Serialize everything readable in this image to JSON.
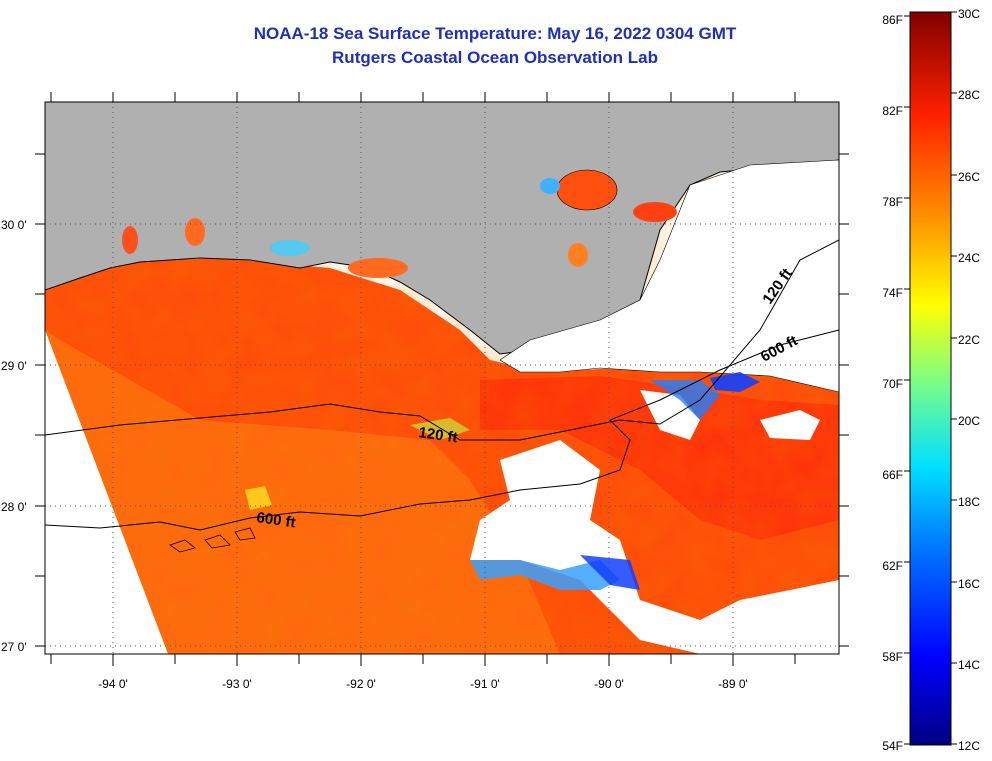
{
  "header": {
    "title": "NOAA-18 Sea Surface Temperature:  May 16, 2022 0304 GMT",
    "subtitle": "Rutgers Coastal Ocean Observation Lab"
  },
  "map": {
    "region": "Northern Gulf of Mexico / Louisiana coast",
    "land_color": "#b0b0b0",
    "cloud_color": "#ffffff",
    "lon_labels": [
      "-94 0'",
      "-93 0'",
      "-92 0'",
      "-91 0'",
      "-90 0'",
      "-89 0'"
    ],
    "lat_labels": [
      "30 0'",
      "29 0'",
      "28 0'",
      "27 0'"
    ],
    "contour_labels": [
      "120 ft",
      "600 ft",
      "120 ft",
      "600 ft"
    ]
  },
  "colorbar": {
    "fahrenheit_labels": [
      "86F",
      "82F",
      "78F",
      "74F",
      "70F",
      "66F",
      "62F",
      "58F",
      "54F"
    ],
    "celsius_labels": [
      "30C",
      "28C",
      "26C",
      "24C",
      "22C",
      "20C",
      "18C",
      "16C",
      "14C",
      "12C"
    ],
    "range_celsius": [
      12,
      30
    ],
    "range_fahrenheit": [
      54,
      86
    ],
    "colors": [
      "#000080",
      "#0000ff",
      "#0080ff",
      "#00ffff",
      "#80ff80",
      "#ffff00",
      "#ff8000",
      "#ff0000",
      "#800000"
    ]
  }
}
